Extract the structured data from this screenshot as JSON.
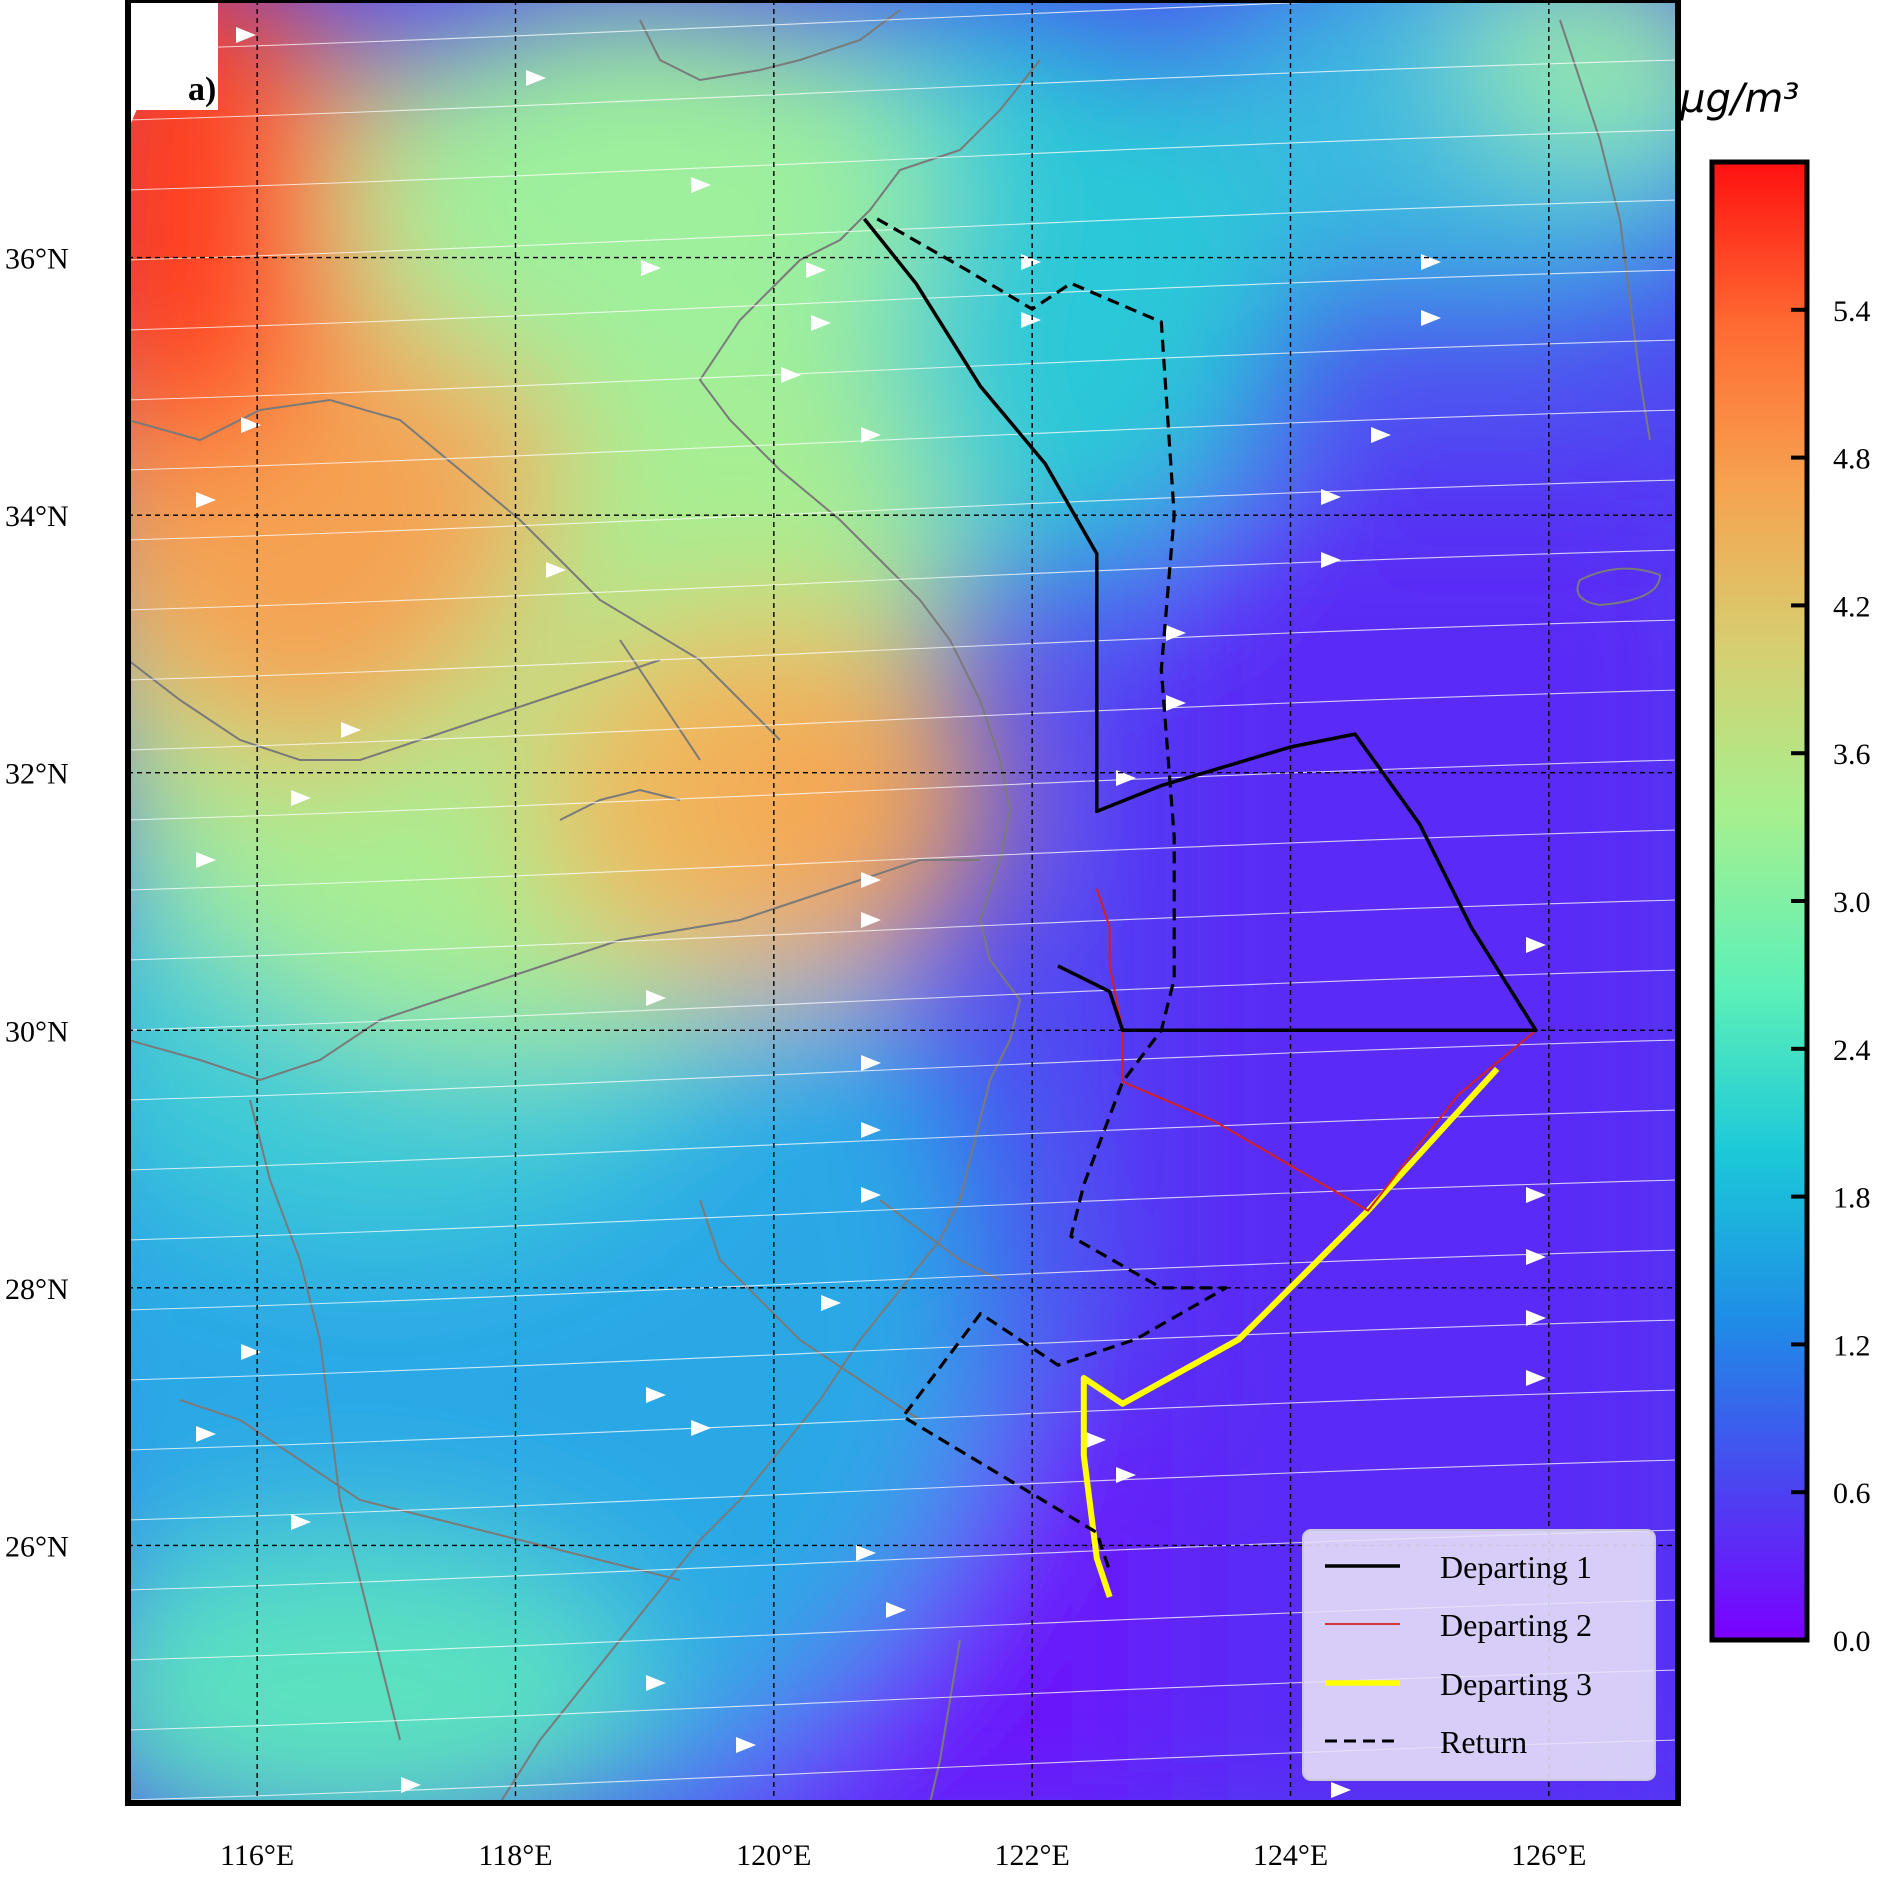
{
  "panel_label": "a)",
  "colorbar": {
    "unit": "μg/m³",
    "ticks": [
      "0.0",
      "0.6",
      "1.2",
      "1.8",
      "2.4",
      "3.0",
      "3.6",
      "4.2",
      "4.8",
      "5.4"
    ],
    "min": 0.0,
    "max": 6.0,
    "colors": [
      "#7a00ff",
      "#4848f0",
      "#1e8fe6",
      "#1cc9d8",
      "#5cf0b8",
      "#a6f08f",
      "#d6cf70",
      "#f6a350",
      "#ff6a32",
      "#ff1010"
    ]
  },
  "axes": {
    "lon_labels": [
      "116°E",
      "118°E",
      "120°E",
      "122°E",
      "124°E",
      "126°E"
    ],
    "lat_labels": [
      "36°N",
      "34°N",
      "32°N",
      "30°N",
      "28°N",
      "26°N"
    ],
    "lon_range": [
      115.0,
      127.0
    ],
    "lat_range": [
      24.0,
      38.0
    ],
    "gridlines": true
  },
  "legend": {
    "placement": "bottom-right",
    "items": [
      {
        "label": "Departing 1",
        "color": "#000000",
        "style": "solid"
      },
      {
        "label": "Departing 2",
        "color": "#d62020",
        "style": "solid"
      },
      {
        "label": "Departing 3",
        "color": "#ffff00",
        "style": "solid"
      },
      {
        "label": "Return",
        "color": "#000000",
        "style": "dashed"
      }
    ]
  },
  "routes": {
    "departing1": [
      [
        120.7,
        36.3
      ],
      [
        121.1,
        35.8
      ],
      [
        121.6,
        35.0
      ],
      [
        122.1,
        34.4
      ],
      [
        122.5,
        33.7
      ],
      [
        122.5,
        33.0
      ],
      [
        122.5,
        31.7
      ],
      [
        123.0,
        31.9
      ],
      [
        124.0,
        32.2
      ],
      [
        124.5,
        32.3
      ],
      [
        125.0,
        31.6
      ],
      [
        125.4,
        30.8
      ],
      [
        125.9,
        30.0
      ],
      [
        124.0,
        30.0
      ],
      [
        122.7,
        30.0
      ],
      [
        122.6,
        30.3
      ],
      [
        122.2,
        30.5
      ]
    ],
    "departing2": [
      [
        122.5,
        31.1
      ],
      [
        122.6,
        30.8
      ],
      [
        122.6,
        30.5
      ],
      [
        122.7,
        30.0
      ],
      [
        122.7,
        29.6
      ],
      [
        123.4,
        29.3
      ],
      [
        124.6,
        28.6
      ],
      [
        125.3,
        29.5
      ],
      [
        125.9,
        30.0
      ]
    ],
    "departing3": [
      [
        122.6,
        25.6
      ],
      [
        122.5,
        25.9
      ],
      [
        122.4,
        26.7
      ],
      [
        122.4,
        27.3
      ],
      [
        122.7,
        27.1
      ],
      [
        123.6,
        27.6
      ],
      [
        124.6,
        28.6
      ],
      [
        125.6,
        29.7
      ]
    ],
    "return": [
      [
        120.8,
        36.3
      ],
      [
        121.5,
        35.9
      ],
      [
        122.0,
        35.6
      ],
      [
        122.3,
        35.8
      ],
      [
        123.0,
        35.5
      ],
      [
        123.1,
        34.0
      ],
      [
        123.0,
        32.8
      ],
      [
        123.1,
        31.5
      ],
      [
        123.1,
        30.4
      ],
      [
        123.0,
        30.0
      ],
      [
        122.7,
        29.6
      ],
      [
        122.4,
        28.8
      ],
      [
        122.3,
        28.4
      ],
      [
        123.0,
        28.0
      ],
      [
        123.5,
        28.0
      ],
      [
        122.8,
        27.6
      ],
      [
        122.2,
        27.4
      ],
      [
        121.6,
        27.8
      ],
      [
        121.0,
        27.0
      ],
      [
        122.5,
        26.1
      ],
      [
        122.6,
        25.8
      ]
    ]
  },
  "wind_flow": {
    "direction": "eastward",
    "arrow_color": "#ffffff",
    "line_color": "#ffffff"
  }
}
